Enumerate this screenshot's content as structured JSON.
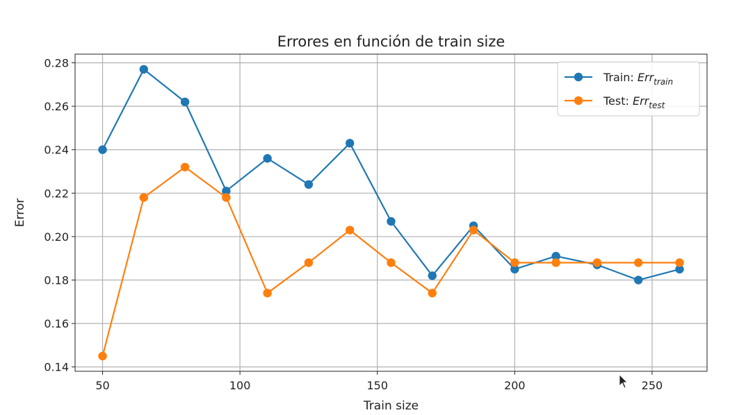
{
  "chart_data": {
    "type": "line",
    "title": "Errores en función de train size",
    "xlabel": "Train size",
    "ylabel": "Error",
    "xlim": [
      40,
      270
    ],
    "ylim": [
      0.138,
      0.284
    ],
    "xticks": [
      50,
      100,
      150,
      200,
      250
    ],
    "yticks": [
      0.14,
      0.16,
      0.18,
      0.2,
      0.22,
      0.24,
      0.26,
      0.28
    ],
    "ytick_labels": [
      "0.14",
      "0.16",
      "0.18",
      "0.20",
      "0.22",
      "0.24",
      "0.26",
      "0.28"
    ],
    "grid": true,
    "legend_position": "top-right",
    "x": [
      50,
      65,
      80,
      95,
      110,
      125,
      140,
      155,
      170,
      185,
      200,
      215,
      230,
      245,
      260
    ],
    "series": [
      {
        "name": "Train: Err_train",
        "legend_prefix": "Train: ",
        "legend_main": "Err",
        "legend_sub": "train",
        "color": "#1f77b4",
        "values": [
          0.24,
          0.277,
          0.262,
          0.221,
          0.236,
          0.224,
          0.243,
          0.207,
          0.182,
          0.205,
          0.185,
          0.191,
          0.187,
          0.18,
          0.185
        ]
      },
      {
        "name": "Test: Err_test",
        "legend_prefix": "Test: ",
        "legend_main": "Err",
        "legend_sub": "test",
        "color": "#ff7f0e",
        "values": [
          0.145,
          0.218,
          0.232,
          0.218,
          0.174,
          0.188,
          0.203,
          0.188,
          0.174,
          0.203,
          0.188,
          0.188,
          0.188,
          0.188,
          0.188
        ]
      }
    ]
  }
}
